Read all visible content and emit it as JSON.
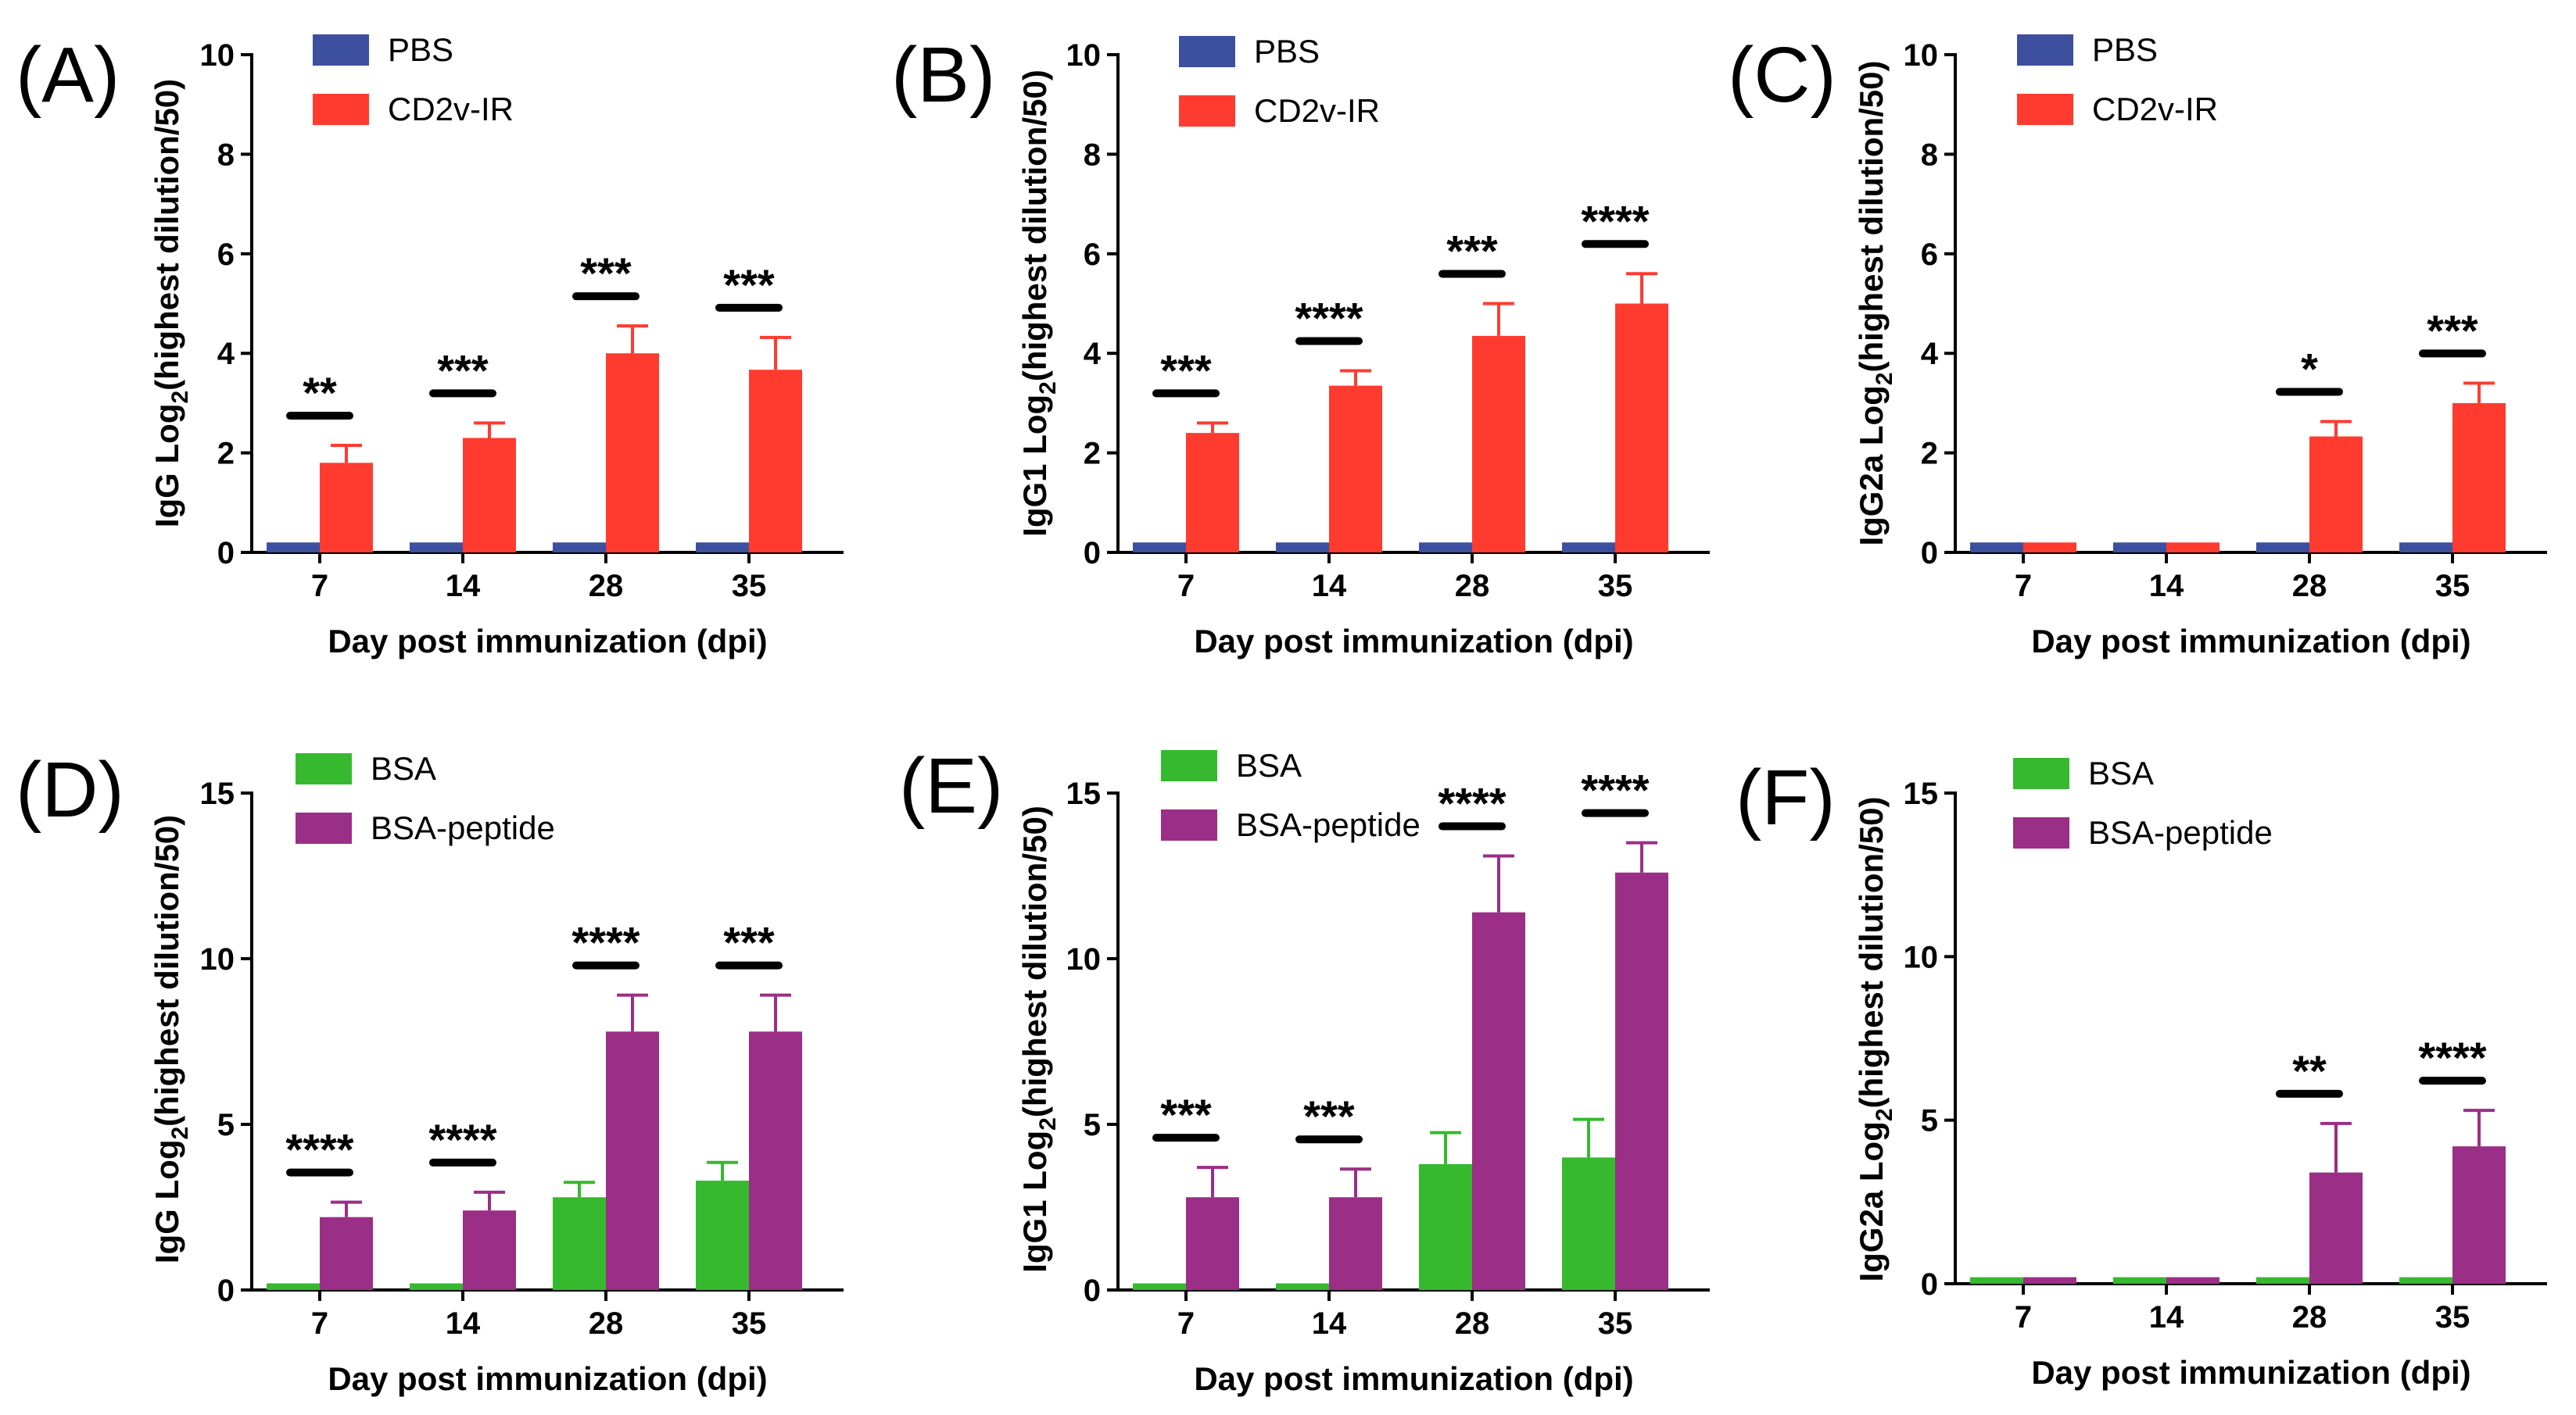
{
  "figure_title": "",
  "colors": {
    "PBS": "#3d4f9f",
    "CD2v-IR": "#ff3b30",
    "BSA": "#36b92e",
    "BSA-peptide": "#9b2e86",
    "axis": "#000000"
  },
  "chart_data": [
    {
      "panel": "(A)",
      "type": "bar",
      "categories": [
        "7",
        "14",
        "28",
        "35"
      ],
      "series": [
        {
          "name": "PBS",
          "values": [
            0.2,
            0.2,
            0.2,
            0.2
          ],
          "errors": [
            0,
            0,
            0,
            0
          ]
        },
        {
          "name": "CD2v-IR",
          "values": [
            1.8,
            2.3,
            4.0,
            3.67
          ],
          "errors": [
            0.35,
            0.3,
            0.55,
            0.65
          ]
        }
      ],
      "significance": [
        "**",
        "***",
        "***",
        "***"
      ],
      "xlabel": "Day post immunization (dpi)",
      "ylabel_prefix": "IgG Log",
      "ylabel_sub": "2",
      "ylabel_suffix": "(highest dilution/50)",
      "ylim": [
        0,
        10
      ],
      "yticks": [
        "0",
        "2",
        "4",
        "6",
        "8",
        "10"
      ]
    },
    {
      "panel": "(B)",
      "type": "bar",
      "categories": [
        "7",
        "14",
        "28",
        "35"
      ],
      "series": [
        {
          "name": "PBS",
          "values": [
            0.2,
            0.2,
            0.2,
            0.2
          ],
          "errors": [
            0,
            0,
            0,
            0
          ]
        },
        {
          "name": "CD2v-IR",
          "values": [
            2.4,
            3.35,
            4.35,
            5.0
          ],
          "errors": [
            0.2,
            0.3,
            0.65,
            0.6
          ]
        }
      ],
      "significance": [
        "***",
        "****",
        "***",
        "****"
      ],
      "xlabel": "Day post immunization (dpi)",
      "ylabel_prefix": "IgG1 Log",
      "ylabel_sub": "2",
      "ylabel_suffix": "(highest dilution/50)",
      "ylim": [
        0,
        10
      ],
      "yticks": [
        "0",
        "2",
        "4",
        "6",
        "8",
        "10"
      ]
    },
    {
      "panel": "(C)",
      "type": "bar",
      "categories": [
        "7",
        "14",
        "28",
        "35"
      ],
      "series": [
        {
          "name": "PBS",
          "values": [
            0.2,
            0.2,
            0.2,
            0.2
          ],
          "errors": [
            0,
            0,
            0,
            0
          ]
        },
        {
          "name": "CD2v-IR",
          "values": [
            0.2,
            0.2,
            2.33,
            3.0
          ],
          "errors": [
            0,
            0,
            0.3,
            0.4
          ]
        }
      ],
      "significance": [
        "",
        "",
        "*",
        "***"
      ],
      "xlabel": "Day post immunization (dpi)",
      "ylabel_prefix": "IgG2a Log",
      "ylabel_sub": "2",
      "ylabel_suffix": "(highest dilution/50)",
      "ylim": [
        0,
        10
      ],
      "yticks": [
        "0",
        "2",
        "4",
        "6",
        "8",
        "10"
      ]
    },
    {
      "panel": "(D)",
      "type": "bar",
      "categories": [
        "7",
        "14",
        "28",
        "35"
      ],
      "series": [
        {
          "name": "BSA",
          "values": [
            0.2,
            0.2,
            2.8,
            3.3
          ],
          "errors": [
            0,
            0,
            0.45,
            0.55
          ]
        },
        {
          "name": "BSA-peptide",
          "values": [
            2.2,
            2.4,
            7.8,
            7.8
          ],
          "errors": [
            0.45,
            0.55,
            1.1,
            1.1
          ]
        }
      ],
      "significance": [
        "****",
        "****",
        "****",
        "***"
      ],
      "xlabel": "Day post immunization (dpi)",
      "ylabel_prefix": "IgG Log",
      "ylabel_sub": "2",
      "ylabel_suffix": "(highest dilution/50)",
      "ylim": [
        0,
        15
      ],
      "yticks": [
        "0",
        "5",
        "10",
        "15"
      ]
    },
    {
      "panel": "(E)",
      "type": "bar",
      "categories": [
        "7",
        "14",
        "28",
        "35"
      ],
      "series": [
        {
          "name": "BSA",
          "values": [
            0.2,
            0.2,
            3.8,
            4.0
          ],
          "errors": [
            0,
            0,
            0.95,
            1.15
          ]
        },
        {
          "name": "BSA-peptide",
          "values": [
            2.8,
            2.8,
            11.4,
            12.6
          ],
          "errors": [
            0.9,
            0.85,
            1.7,
            0.9
          ]
        }
      ],
      "significance": [
        "***",
        "***",
        "****",
        "****"
      ],
      "xlabel": "Day post immunization (dpi)",
      "ylabel_prefix": "IgG1 Log",
      "ylabel_sub": "2",
      "ylabel_suffix": "(highest dilution/50)",
      "ylim": [
        0,
        15
      ],
      "yticks": [
        "0",
        "5",
        "10",
        "15"
      ]
    },
    {
      "panel": "(F)",
      "type": "bar",
      "categories": [
        "7",
        "14",
        "28",
        "35"
      ],
      "series": [
        {
          "name": "BSA",
          "values": [
            0.2,
            0.2,
            0.2,
            0.2
          ],
          "errors": [
            0,
            0,
            0,
            0
          ]
        },
        {
          "name": "BSA-peptide",
          "values": [
            0.2,
            0.2,
            3.4,
            4.2
          ],
          "errors": [
            0,
            0,
            1.5,
            1.1
          ]
        }
      ],
      "significance": [
        "",
        "",
        "**",
        "****"
      ],
      "xlabel": "Day post immunization (dpi)",
      "ylabel_prefix": "IgG2a Log",
      "ylabel_sub": "2",
      "ylabel_suffix": "(highest dilution/50)",
      "ylim": [
        0,
        15
      ],
      "yticks": [
        "0",
        "5",
        "10",
        "15"
      ]
    }
  ]
}
